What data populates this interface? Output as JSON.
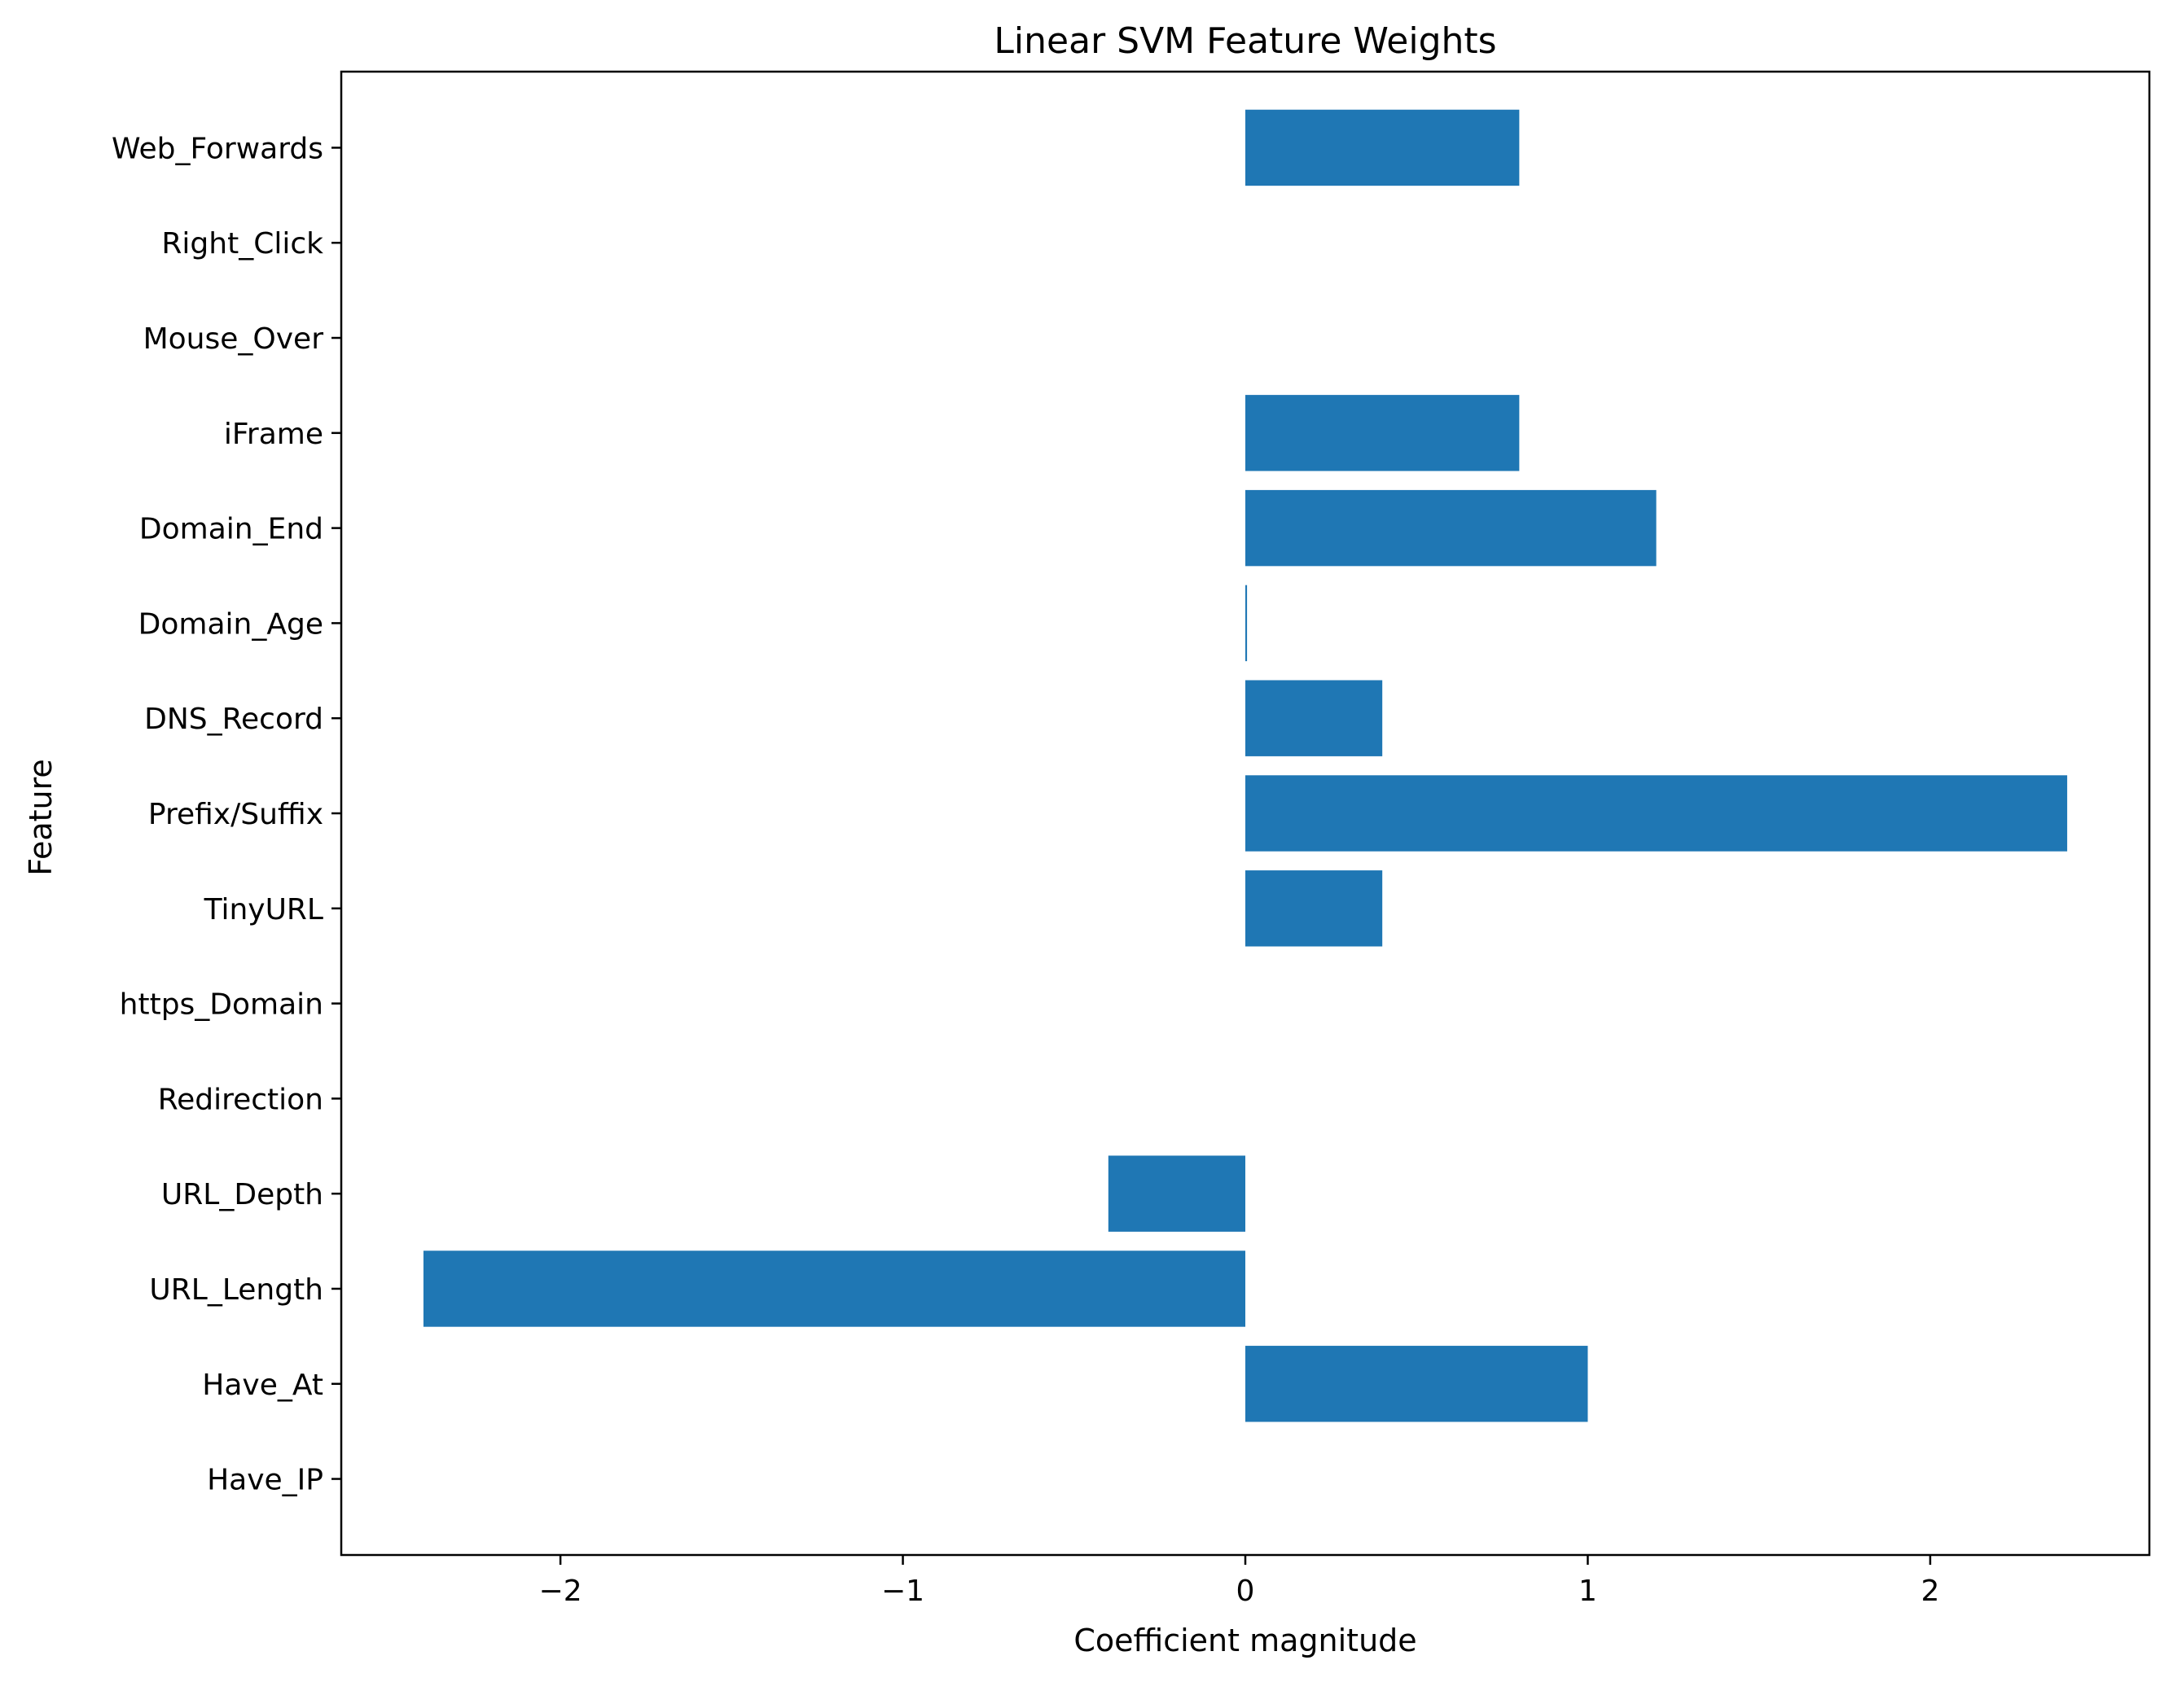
{
  "chart_data": {
    "type": "bar",
    "orientation": "horizontal",
    "title": "Linear SVM Feature Weights",
    "xlabel": "Coefficient magnitude",
    "ylabel": "Feature",
    "categories": [
      "Have_IP",
      "Have_At",
      "URL_Length",
      "URL_Depth",
      "Redirection",
      "https_Domain",
      "TinyURL",
      "Prefix/Suffix",
      "DNS_Record",
      "Domain_Age",
      "Domain_End",
      "iFrame",
      "Mouse_Over",
      "Right_Click",
      "Web_Forwards"
    ],
    "values": [
      0,
      1.0,
      -2.4,
      -0.4,
      0,
      0,
      0.4,
      2.4,
      0.4,
      0.005,
      1.2,
      0.8,
      0,
      0,
      0.8
    ],
    "xlim": [
      -2.64,
      2.64
    ],
    "xticks": [
      -2,
      -1,
      0,
      1,
      2
    ],
    "xtick_labels": [
      "−2",
      "−1",
      "0",
      "1",
      "2"
    ],
    "bar_color": "#1f77b4",
    "grid": false,
    "legend": "none"
  }
}
